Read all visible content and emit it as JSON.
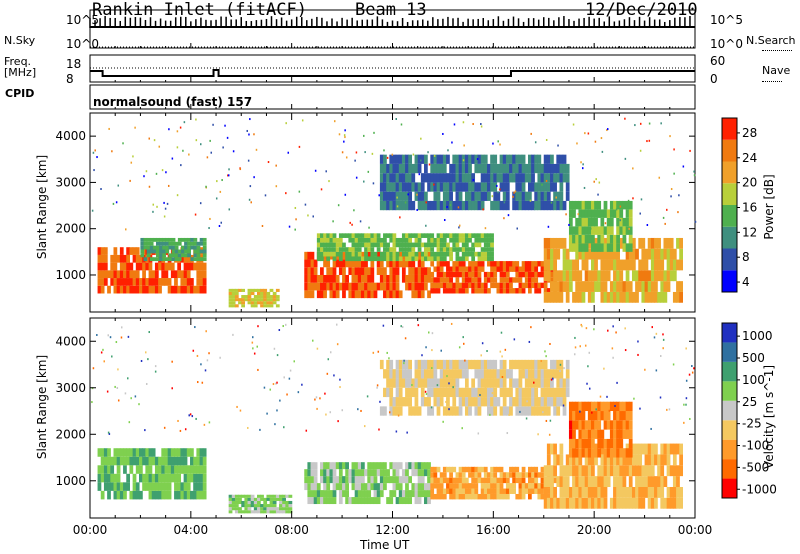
{
  "header": {
    "radar": "Rankin Inlet (fitACF)",
    "beam": "Beam 13",
    "date": "12/Dec/2010"
  },
  "top_panels": {
    "nsky_label": "N.Sky",
    "nsearch_label": "N.Search",
    "freq_label_1": "Freq.",
    "freq_label_2": "[MHz]",
    "nave_label": "Nave",
    "cpid_label": "CPID",
    "cpid_value": "normalsound (fast) 157",
    "noise_left_ticks": [
      "10^5",
      "10^0"
    ],
    "noise_right_ticks": [
      "10^5",
      "10^0"
    ],
    "freq_left_ticks": [
      "18",
      "8"
    ],
    "nave_right_ticks": [
      "60",
      "0"
    ]
  },
  "x_axis": {
    "label": "Time UT",
    "ticks": [
      "00:00",
      "04:00",
      "08:00",
      "12:00",
      "16:00",
      "20:00",
      "00:00"
    ]
  },
  "colors": {
    "power_scale": [
      "#0000ff",
      "#2f4fa8",
      "#3f8f7f",
      "#4fb04f",
      "#b8cf3a",
      "#f0a02a",
      "#f07a10",
      "#ff2000"
    ],
    "velocity_scale": [
      "#ff0000",
      "#ff6a00",
      "#ff9a2a",
      "#f4c860",
      "#c8c8c8",
      "#7fd04f",
      "#3fa06f",
      "#2f70a0",
      "#2030c0"
    ]
  },
  "chart_data": [
    {
      "type": "heatmap",
      "panel": "power",
      "ylabel": "Slant Range [km]",
      "y_ticks": [
        "1000",
        "2000",
        "3000",
        "4000"
      ],
      "ylim": [
        200,
        4500
      ],
      "xlim": [
        "00:00",
        "24:00"
      ],
      "colorbar": {
        "label": "Power [dB]",
        "ticks": [
          "28",
          "24",
          "20",
          "16",
          "12",
          "8",
          "4"
        ],
        "range": [
          0,
          30
        ]
      },
      "regions": [
        {
          "t": [
            0.3,
            4.6
          ],
          "range_km": [
            600,
            1600
          ],
          "value_db": 26
        },
        {
          "t": [
            2.0,
            4.6
          ],
          "range_km": [
            1300,
            1800
          ],
          "value_db": 12
        },
        {
          "t": [
            5.5,
            7.5
          ],
          "range_km": [
            300,
            700
          ],
          "value_db": 18
        },
        {
          "t": [
            8.5,
            13.5
          ],
          "range_km": [
            500,
            1500
          ],
          "value_db": 26
        },
        {
          "t": [
            13.5,
            18.5
          ],
          "range_km": [
            600,
            1300
          ],
          "value_db": 26
        },
        {
          "t": [
            9.0,
            16.0
          ],
          "range_km": [
            1300,
            1900
          ],
          "value_db": 14
        },
        {
          "t": [
            18.0,
            23.5
          ],
          "range_km": [
            400,
            1800
          ],
          "value_db": 20
        },
        {
          "t": [
            11.5,
            19.0
          ],
          "range_km": [
            2400,
            3600
          ],
          "value_db": 8
        },
        {
          "t": [
            19.0,
            21.5
          ],
          "range_km": [
            1500,
            2600
          ],
          "value_db": 14
        }
      ]
    },
    {
      "type": "heatmap",
      "panel": "velocity",
      "ylabel": "Slant Range [km]",
      "y_ticks": [
        "1000",
        "2000",
        "3000",
        "4000"
      ],
      "ylim": [
        200,
        4500
      ],
      "xlim": [
        "00:00",
        "24:00"
      ],
      "colorbar": {
        "label": "Velocity [m s^-1]",
        "ticks": [
          "1000",
          "500",
          "100",
          "25",
          "-25",
          "-100",
          "-500",
          "-1000"
        ],
        "range": [
          -1000,
          1000
        ]
      },
      "regions": [
        {
          "t": [
            0.3,
            4.6
          ],
          "range_km": [
            600,
            1700
          ],
          "value_ms": 300
        },
        {
          "t": [
            5.5,
            8.0
          ],
          "range_km": [
            300,
            700
          ],
          "value_ms": 200
        },
        {
          "t": [
            8.5,
            13.5
          ],
          "range_km": [
            500,
            1400
          ],
          "value_ms": 200
        },
        {
          "t": [
            13.5,
            18.5
          ],
          "range_km": [
            600,
            1300
          ],
          "value_ms": -400
        },
        {
          "t": [
            18.0,
            23.5
          ],
          "range_km": [
            400,
            1800
          ],
          "value_ms": -300
        },
        {
          "t": [
            11.5,
            19.0
          ],
          "range_km": [
            2400,
            3600
          ],
          "value_ms": -150
        },
        {
          "t": [
            19.0,
            21.5
          ],
          "range_km": [
            1500,
            2700
          ],
          "value_ms": -600
        }
      ]
    }
  ]
}
